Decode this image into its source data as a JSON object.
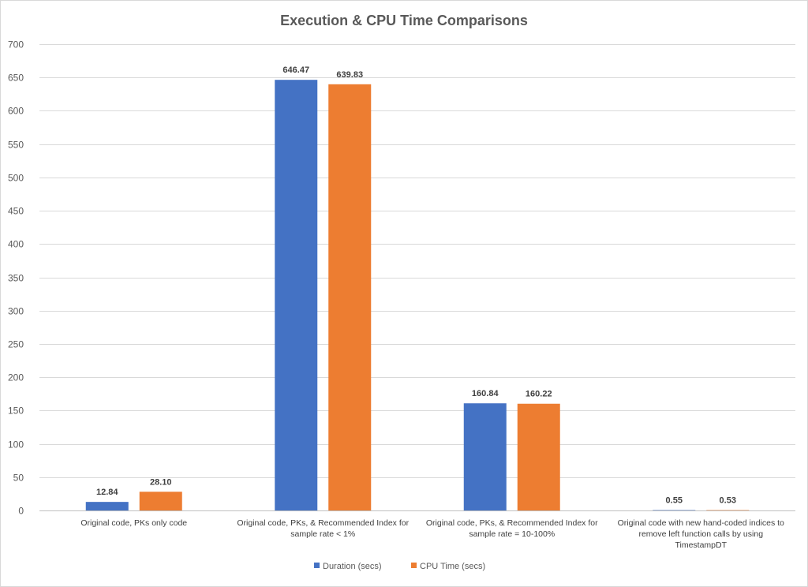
{
  "chart_data": {
    "type": "bar",
    "title": "Execution & CPU Time Comparisons",
    "categories": [
      [
        "Original code, PKs only code"
      ],
      [
        "Original code, PKs, & Recommended Index for",
        "sample rate < 1%"
      ],
      [
        "Original code, PKs, & Recommended Index for",
        "sample rate = 10-100%"
      ],
      [
        "Original code with new hand-coded indices to",
        "remove left function calls by using",
        "TimestampDT"
      ]
    ],
    "series": [
      {
        "name": "Duration (secs)",
        "color": "#4472C4",
        "values": [
          12.84,
          646.47,
          160.84,
          0.55
        ],
        "labels": [
          "12.84",
          "646.47",
          "160.84",
          "0.55"
        ]
      },
      {
        "name": "CPU Time (secs)",
        "color": "#ED7D31",
        "values": [
          28.1,
          639.83,
          160.22,
          0.53
        ],
        "labels": [
          "28.10",
          "639.83",
          "160.22",
          "0.53"
        ]
      }
    ],
    "ylim": [
      0,
      700
    ],
    "ytick_step": 50,
    "grid": true,
    "legend": "bottom"
  }
}
